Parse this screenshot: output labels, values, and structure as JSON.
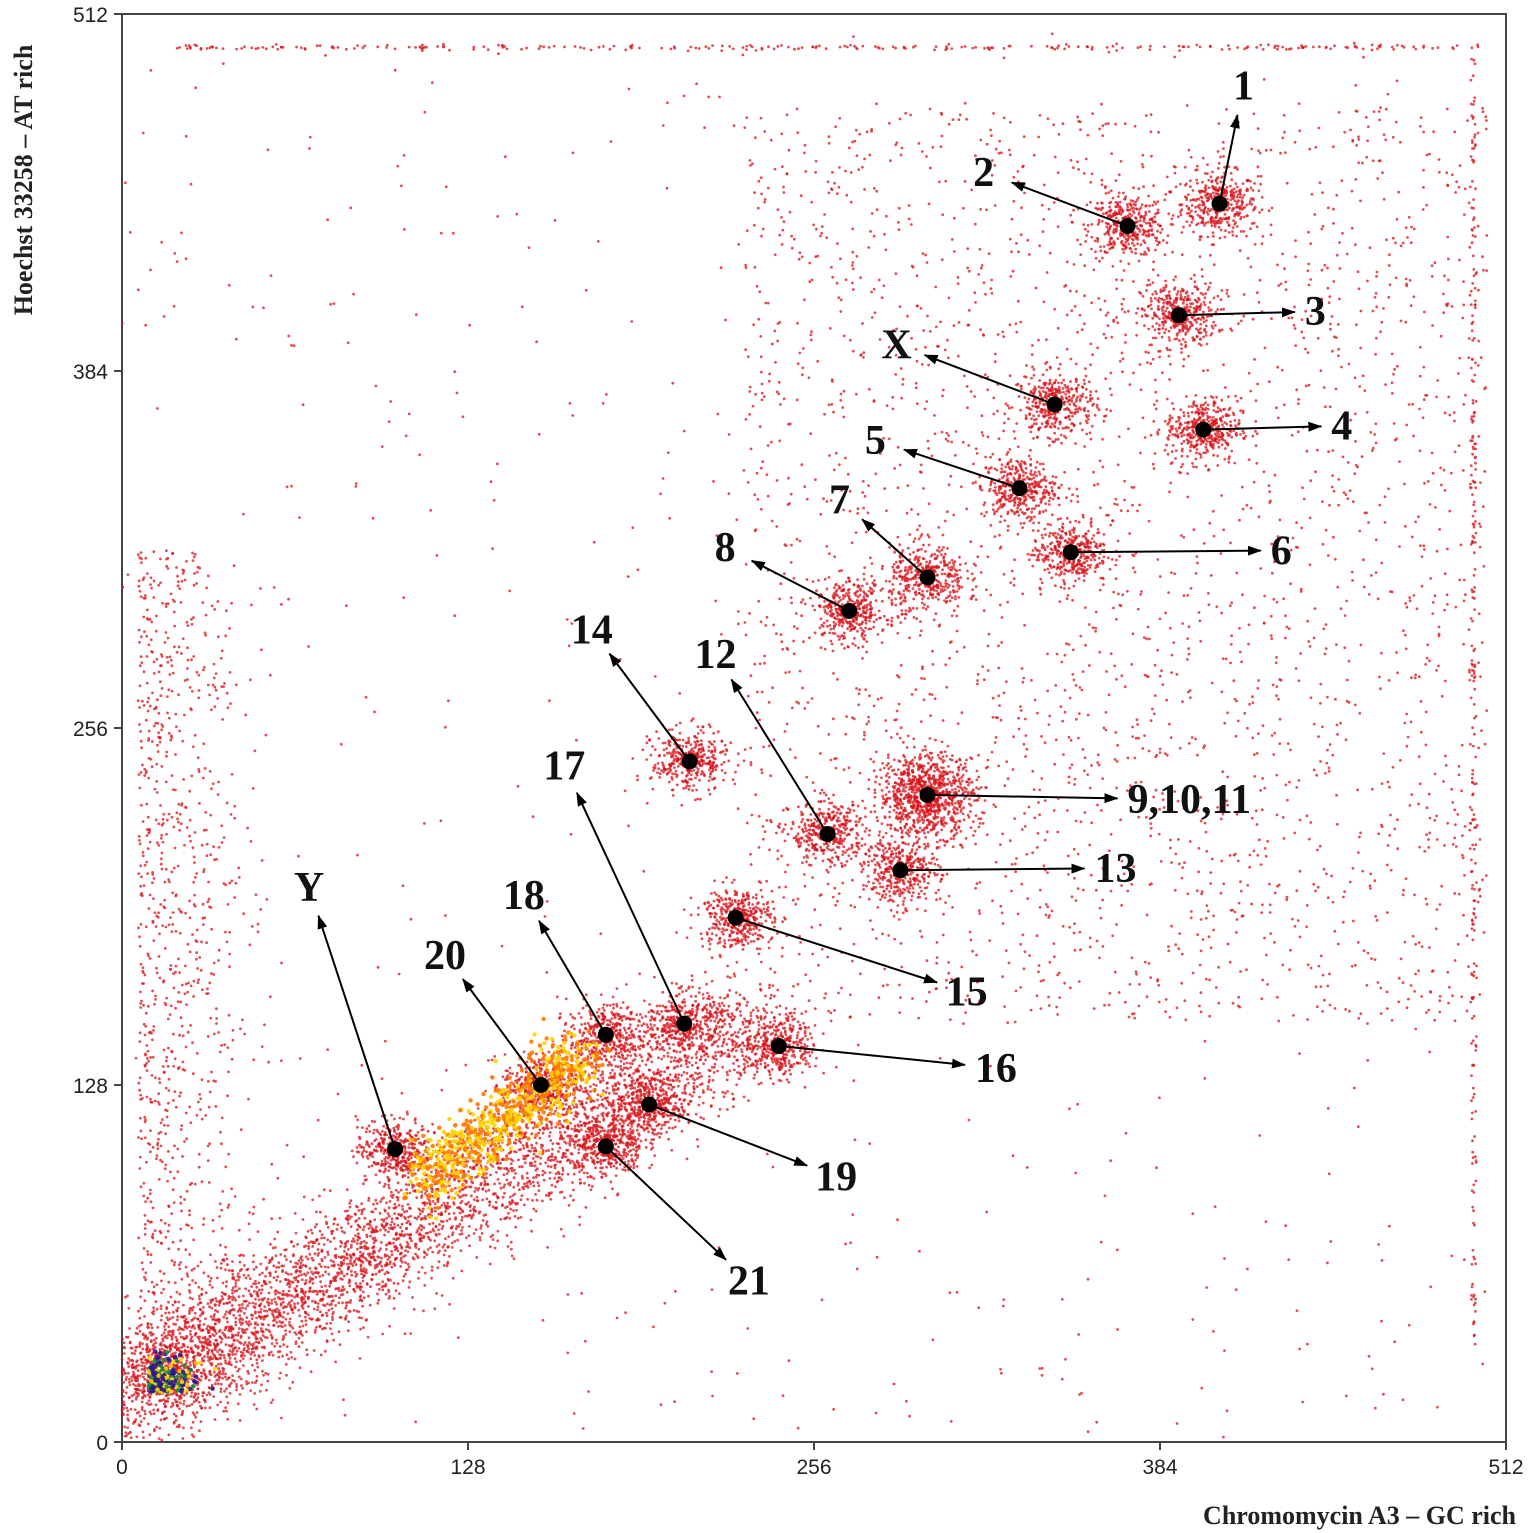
{
  "chart_data": {
    "type": "scatter",
    "title": "",
    "xlabel": "Chromomycin A3 – GC rich",
    "ylabel": "Hoechst 33258 – AT rich",
    "xlim": [
      0,
      512
    ],
    "ylim": [
      0,
      512
    ],
    "x_ticks": [
      0,
      128,
      256,
      384,
      512
    ],
    "y_ticks": [
      0,
      128,
      256,
      384,
      512
    ],
    "grid": false,
    "legend": "none",
    "colors": {
      "events": "#d8141c",
      "density_mid": "#ff7a00",
      "density_high": "#ffd400",
      "density_peak": "#2a1a8c",
      "marker": "#000000",
      "arrow": "#000000"
    },
    "annotations": [
      {
        "label": "1",
        "x": 406,
        "y": 444
      },
      {
        "label": "2",
        "x": 372,
        "y": 436
      },
      {
        "label": "3",
        "x": 391,
        "y": 404
      },
      {
        "label": "X",
        "x": 345,
        "y": 372
      },
      {
        "label": "4",
        "x": 400,
        "y": 363
      },
      {
        "label": "5",
        "x": 332,
        "y": 342
      },
      {
        "label": "6",
        "x": 351,
        "y": 319
      },
      {
        "label": "7",
        "x": 298,
        "y": 310
      },
      {
        "label": "8",
        "x": 269,
        "y": 298
      },
      {
        "label": "14",
        "x": 210,
        "y": 244
      },
      {
        "label": "9,10,11",
        "x": 298,
        "y": 232
      },
      {
        "label": "12",
        "x": 261,
        "y": 218
      },
      {
        "label": "13",
        "x": 288,
        "y": 205
      },
      {
        "label": "15",
        "x": 227,
        "y": 188
      },
      {
        "label": "17",
        "x": 208,
        "y": 150
      },
      {
        "label": "18",
        "x": 179,
        "y": 146
      },
      {
        "label": "16",
        "x": 243,
        "y": 142
      },
      {
        "label": "20",
        "x": 155,
        "y": 128
      },
      {
        "label": "19",
        "x": 195,
        "y": 121
      },
      {
        "label": "Y",
        "x": 101,
        "y": 105
      },
      {
        "label": "21",
        "x": 179,
        "y": 106
      }
    ]
  }
}
